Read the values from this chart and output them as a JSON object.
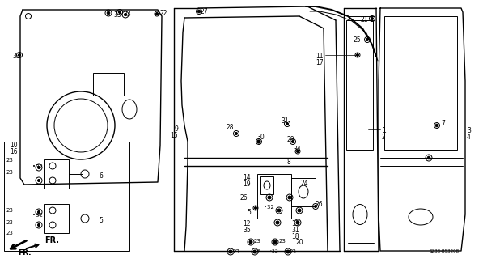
{
  "bg_color": "#ffffff",
  "lw_thin": 0.7,
  "lw_med": 1.0,
  "lw_thick": 1.4,
  "part_code": "SZ33-B53208",
  "fig_width": 6.23,
  "fig_height": 3.2,
  "dpi": 100
}
